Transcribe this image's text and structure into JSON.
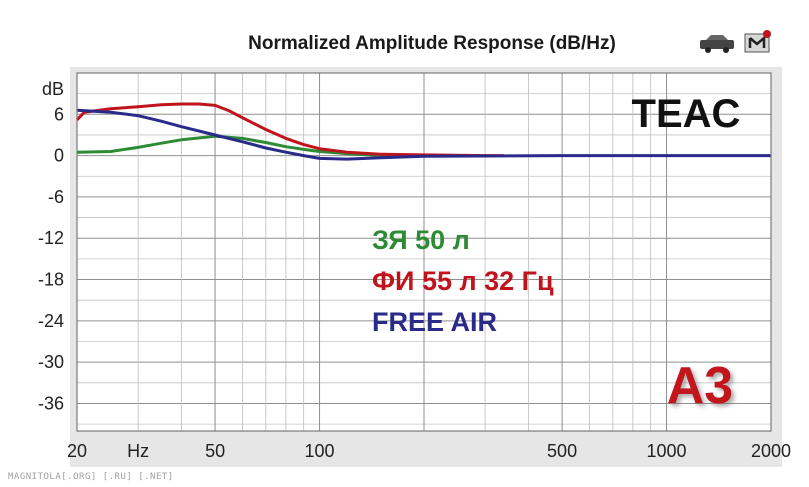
{
  "chart_data": {
    "type": "line",
    "title": "Normalized Amplitude Response (dB/Hz)",
    "xscale": "log",
    "xlim": [
      20,
      2000
    ],
    "ylim": [
      -40,
      12
    ],
    "grid": true,
    "y_ticks": [
      {
        "value": 6,
        "label": "6"
      },
      {
        "value": 0,
        "label": "0"
      },
      {
        "value": -6,
        "label": "-6"
      },
      {
        "value": -12,
        "label": "-12"
      },
      {
        "value": -18,
        "label": "-18"
      },
      {
        "value": -24,
        "label": "-24"
      },
      {
        "value": -30,
        "label": "-30"
      },
      {
        "value": -36,
        "label": "-36"
      }
    ],
    "y_unit_label": "dB",
    "x_ticks": [
      {
        "value": 20,
        "label": "20"
      },
      {
        "value": 50,
        "label": "50"
      },
      {
        "value": 100,
        "label": "100"
      },
      {
        "value": 500,
        "label": "500"
      },
      {
        "value": 1000,
        "label": "1000"
      },
      {
        "value": 2000,
        "label": "2000"
      }
    ],
    "x_unit_label": "Hz",
    "brand": "TEAC",
    "series": [
      {
        "name": "ЗЯ 50 л",
        "color": "#2e8b35",
        "x": [
          20,
          25,
          30,
          35,
          40,
          50,
          60,
          70,
          80,
          90,
          100,
          120,
          140,
          160
        ],
        "y": [
          0.5,
          0.6,
          1.2,
          1.8,
          2.3,
          2.8,
          2.5,
          1.9,
          1.3,
          0.9,
          0.6,
          0.3,
          0.1,
          0
        ]
      },
      {
        "name": "ФИ 55 л 32 Гц",
        "color": "#c0141c",
        "x": [
          20,
          21,
          25,
          30,
          35,
          40,
          45,
          50,
          55,
          60,
          70,
          80,
          90,
          100,
          120,
          150,
          200,
          300,
          340
        ],
        "y": [
          5.2,
          6.3,
          6.8,
          7.1,
          7.4,
          7.5,
          7.5,
          7.3,
          6.5,
          5.5,
          3.8,
          2.5,
          1.6,
          1.0,
          0.5,
          0.2,
          0.1,
          0,
          0
        ]
      },
      {
        "name": "FREE AIR",
        "color": "#2a2a8a",
        "x": [
          20,
          25,
          30,
          35,
          40,
          50,
          60,
          70,
          80,
          90,
          100,
          120,
          150,
          200,
          500,
          1000,
          2000
        ],
        "y": [
          6.6,
          6.3,
          5.8,
          5.0,
          4.2,
          3.0,
          2.0,
          1.1,
          0.5,
          0,
          -0.4,
          -0.5,
          -0.3,
          -0.1,
          0,
          0,
          0
        ]
      }
    ]
  },
  "corner_logo": {
    "text": "A3",
    "color": "#c0141c"
  },
  "watermark": "MAGNITOLA[.ORG] [.RU] [.NET]",
  "icons": [
    "car-icon",
    "magnitola-logo-icon"
  ]
}
